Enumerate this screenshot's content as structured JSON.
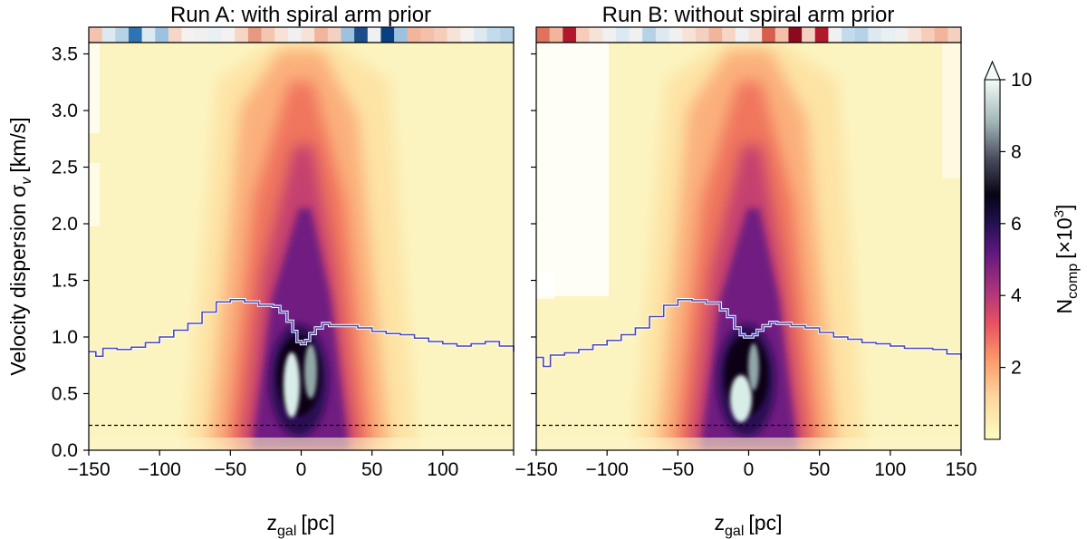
{
  "chart_data": {
    "type": "heatmap",
    "panels": [
      {
        "title": "Run A: with spiral arm prior",
        "median_line": [
          [
            -150,
            0.87
          ],
          [
            -145,
            0.83
          ],
          [
            -140,
            0.9
          ],
          [
            -130,
            0.89
          ],
          [
            -120,
            0.91
          ],
          [
            -110,
            0.95
          ],
          [
            -100,
            1.0
          ],
          [
            -90,
            1.06
          ],
          [
            -80,
            1.12
          ],
          [
            -70,
            1.22
          ],
          [
            -60,
            1.31
          ],
          [
            -50,
            1.33
          ],
          [
            -40,
            1.31
          ],
          [
            -30,
            1.28
          ],
          [
            -20,
            1.27
          ],
          [
            -15,
            1.22
          ],
          [
            -10,
            1.14
          ],
          [
            -6,
            1.05
          ],
          [
            -3,
            0.96
          ],
          [
            0,
            0.94
          ],
          [
            3,
            0.97
          ],
          [
            6,
            1.03
          ],
          [
            10,
            1.08
          ],
          [
            15,
            1.12
          ],
          [
            20,
            1.1
          ],
          [
            30,
            1.1
          ],
          [
            40,
            1.08
          ],
          [
            50,
            1.05
          ],
          [
            60,
            1.03
          ],
          [
            70,
            1.02
          ],
          [
            80,
            0.99
          ],
          [
            90,
            0.96
          ],
          [
            100,
            0.94
          ],
          [
            110,
            0.92
          ],
          [
            120,
            0.94
          ],
          [
            130,
            0.96
          ],
          [
            140,
            0.92
          ],
          [
            150,
            0.87
          ]
        ],
        "bar_colors": [
          "#f3c3ad",
          "#dce9f1",
          "#b6d2e6",
          "#2e74b3",
          "#dce9f1",
          "#9dc2df",
          "#f6d6c6",
          "#f4f1f0",
          "#f0f0f0",
          "#e9f0f4",
          "#f4f1f0",
          "#f6d6c6",
          "#e89a80",
          "#f5c5b0",
          "#f7e2d8",
          "#f0f0f0",
          "#f7e2d8",
          "#f3b49c",
          "#f4d0c1",
          "#9dc2df",
          "#1d4e89",
          "#f0f0f0",
          "#084081",
          "#9dc2df",
          "#f3b49c",
          "#f4c0aa",
          "#f6cdb9",
          "#f7e2d8",
          "#f4f1f0",
          "#dce9f1",
          "#c4dbeb",
          "#b6d2e6"
        ]
      },
      {
        "title": "Run B: without spiral arm prior",
        "median_line": [
          [
            -150,
            0.82
          ],
          [
            -145,
            0.74
          ],
          [
            -140,
            0.84
          ],
          [
            -130,
            0.86
          ],
          [
            -120,
            0.89
          ],
          [
            -110,
            0.93
          ],
          [
            -100,
            0.97
          ],
          [
            -90,
            1.02
          ],
          [
            -80,
            1.08
          ],
          [
            -70,
            1.18
          ],
          [
            -60,
            1.28
          ],
          [
            -50,
            1.33
          ],
          [
            -40,
            1.32
          ],
          [
            -30,
            1.3
          ],
          [
            -20,
            1.24
          ],
          [
            -15,
            1.18
          ],
          [
            -10,
            1.08
          ],
          [
            -6,
            1.02
          ],
          [
            -3,
            1.0
          ],
          [
            0,
            1.0
          ],
          [
            3,
            1.02
          ],
          [
            6,
            1.06
          ],
          [
            10,
            1.1
          ],
          [
            15,
            1.13
          ],
          [
            20,
            1.12
          ],
          [
            30,
            1.1
          ],
          [
            40,
            1.08
          ],
          [
            50,
            1.04
          ],
          [
            60,
            1.0
          ],
          [
            70,
            0.98
          ],
          [
            80,
            0.95
          ],
          [
            90,
            0.94
          ],
          [
            100,
            0.92
          ],
          [
            110,
            0.9
          ],
          [
            120,
            0.9
          ],
          [
            130,
            0.89
          ],
          [
            140,
            0.85
          ],
          [
            150,
            0.8
          ]
        ],
        "bar_colors": [
          "#e0725e",
          "#f3b49c",
          "#b2182b",
          "#f6cdb9",
          "#f7e2d8",
          "#f0f0f0",
          "#dce9f1",
          "#f0f0f0",
          "#b6d2e6",
          "#dce9f1",
          "#f0f0f0",
          "#f7e2d8",
          "#f4d0c1",
          "#f3b49c",
          "#f6d6c6",
          "#f0f0f0",
          "#f7e2d8",
          "#d6604d",
          "#f4c0aa",
          "#8b0a1e",
          "#f4d0c1",
          "#b2182b",
          "#f0f0f0",
          "#c4dbeb",
          "#b6d2e6",
          "#dce9f1",
          "#e9f0f4",
          "#f0f0f0",
          "#f7e2d8",
          "#f6cdb9",
          "#f3b49c",
          "#f4d0c1"
        ]
      }
    ],
    "xlabel": "z",
    "xlabel_subscript": "gal",
    "xlabel_unit": "[pc]",
    "ylabel_main": "Velocity dispersion σ",
    "ylabel_subscript": "v",
    "ylabel_unit": "[km/s]",
    "xlim": [
      -150,
      150
    ],
    "ylim": [
      0,
      3.6
    ],
    "xticks": [
      "−150",
      "−100",
      "−50",
      "0",
      "50",
      "100",
      "150"
    ],
    "xtick_values": [
      -150,
      -100,
      -50,
      0,
      50,
      100,
      150
    ],
    "yticks": [
      "0.0",
      "0.5",
      "1.0",
      "1.5",
      "2.0",
      "2.5",
      "3.0",
      "3.5"
    ],
    "ytick_values": [
      0,
      0.5,
      1.0,
      1.5,
      2.0,
      2.5,
      3.0,
      3.5
    ],
    "dashed_line_y": 0.22,
    "colorbar": {
      "label_main": "N",
      "label_sub": "comp",
      "label_unit_prefix": "[×10",
      "label_unit_sup": "3",
      "label_unit_suffix": "]",
      "range": [
        0,
        10
      ],
      "extend": "max",
      "ticks": [
        "2",
        "4",
        "6",
        "8",
        "10"
      ],
      "tick_values": [
        2,
        4,
        6,
        8,
        10
      ],
      "colormap": "inverted magma"
    },
    "median_line_color": "#4b46b4"
  }
}
